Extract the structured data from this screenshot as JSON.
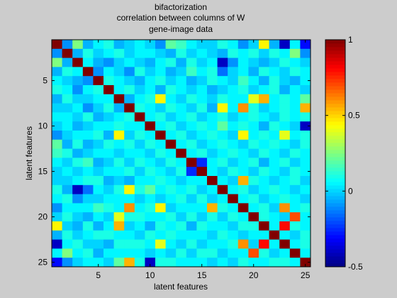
{
  "chart_data": {
    "type": "heatmap",
    "title": [
      "bifactorization",
      "correlation between columns of W",
      "gene-image data"
    ],
    "xlabel": "latent features",
    "ylabel": "latent features",
    "x_ticks": [
      "5",
      "10",
      "15",
      "20",
      "25"
    ],
    "y_ticks": [
      "5",
      "10",
      "15",
      "20",
      "25"
    ],
    "x_tick_values": [
      5,
      10,
      15,
      20,
      25
    ],
    "y_tick_values": [
      5,
      10,
      15,
      20,
      25
    ],
    "x_range": [
      0.5,
      25.5
    ],
    "y_range": [
      0.5,
      25.5
    ],
    "y_direction": "reversed",
    "colormap": "jet",
    "color_range": [
      -0.5,
      1
    ],
    "colorbar_ticks": [
      "-0.5",
      "0",
      "0.5",
      "1"
    ],
    "colorbar_tick_values": [
      -0.5,
      0,
      0.5,
      1
    ],
    "matrix": [
      [
        1.0,
        -0.1,
        0.25,
        -0.05,
        0.05,
        0.1,
        -0.05,
        0.0,
        0.05,
        0.0,
        -0.1,
        0.2,
        0.15,
        0.05,
        0.0,
        0.0,
        0.1,
        0.05,
        -0.1,
        0.0,
        0.45,
        -0.05,
        -0.4,
        0.05,
        -0.3
      ],
      [
        -0.1,
        1.0,
        -0.05,
        0.1,
        0.0,
        0.05,
        0.1,
        0.0,
        0.05,
        0.05,
        0.0,
        -0.05,
        0.1,
        0.0,
        0.05,
        0.0,
        -0.05,
        0.1,
        0.05,
        0.1,
        0.0,
        0.1,
        0.05,
        0.25,
        -0.1
      ],
      [
        0.25,
        -0.05,
        1.0,
        0.05,
        -0.05,
        -0.1,
        0.0,
        0.05,
        0.0,
        -0.05,
        0.05,
        0.1,
        -0.05,
        0.1,
        0.0,
        0.05,
        -0.4,
        -0.1,
        0.05,
        0.0,
        -0.05,
        0.0,
        0.1,
        0.05,
        0.0
      ],
      [
        -0.05,
        0.1,
        0.05,
        1.0,
        -0.1,
        0.05,
        0.0,
        -0.1,
        0.1,
        0.0,
        0.05,
        -0.05,
        0.0,
        0.15,
        0.05,
        0.1,
        -0.15,
        0.0,
        0.05,
        -0.05,
        0.1,
        0.05,
        0.0,
        0.1,
        0.05
      ],
      [
        0.05,
        0.0,
        -0.05,
        -0.1,
        1.0,
        0.1,
        0.05,
        0.0,
        -0.05,
        0.05,
        0.1,
        0.0,
        0.05,
        -0.05,
        0.0,
        0.1,
        0.05,
        0.0,
        0.15,
        0.05,
        -0.05,
        0.1,
        0.0,
        -0.05,
        0.05
      ],
      [
        0.1,
        0.05,
        -0.1,
        0.05,
        0.1,
        1.0,
        0.05,
        0.1,
        0.0,
        0.05,
        -0.05,
        0.1,
        0.05,
        0.0,
        0.05,
        -0.05,
        0.0,
        0.05,
        0.1,
        0.0,
        0.05,
        0.1,
        -0.05,
        0.05,
        0.0
      ],
      [
        -0.05,
        0.1,
        0.0,
        0.0,
        0.05,
        0.05,
        1.0,
        -0.05,
        0.05,
        0.1,
        0.45,
        0.05,
        0.0,
        0.1,
        0.05,
        0.0,
        0.1,
        0.05,
        0.05,
        0.4,
        0.55,
        0.05,
        0.1,
        0.05,
        0.2
      ],
      [
        0.0,
        0.0,
        0.05,
        -0.1,
        0.0,
        0.1,
        -0.05,
        1.0,
        0.1,
        0.05,
        0.0,
        0.1,
        0.05,
        0.0,
        0.1,
        -0.05,
        0.45,
        0.05,
        0.6,
        0.1,
        0.0,
        0.05,
        0.1,
        0.05,
        0.55
      ],
      [
        0.05,
        0.05,
        0.0,
        0.1,
        -0.05,
        0.0,
        0.05,
        0.1,
        1.0,
        0.05,
        0.1,
        0.0,
        0.05,
        0.1,
        0.0,
        0.05,
        0.1,
        0.0,
        0.05,
        0.1,
        0.05,
        0.0,
        0.1,
        0.05,
        0.1
      ],
      [
        0.0,
        0.05,
        -0.05,
        0.0,
        0.05,
        0.05,
        0.1,
        0.05,
        0.05,
        1.0,
        0.05,
        0.1,
        0.0,
        0.05,
        0.1,
        0.05,
        0.2,
        0.05,
        0.1,
        0.05,
        -0.05,
        0.1,
        0.05,
        0.0,
        -0.4
      ],
      [
        -0.1,
        0.0,
        0.05,
        0.05,
        0.1,
        -0.05,
        0.45,
        0.0,
        0.1,
        0.05,
        1.0,
        0.05,
        0.1,
        0.0,
        0.05,
        0.1,
        0.05,
        0.0,
        0.45,
        0.05,
        0.1,
        0.05,
        0.4,
        0.05,
        0.1
      ],
      [
        0.2,
        -0.05,
        0.1,
        -0.05,
        0.0,
        0.1,
        0.05,
        0.1,
        0.0,
        0.1,
        0.05,
        1.0,
        0.05,
        0.1,
        0.0,
        0.05,
        0.1,
        0.05,
        0.0,
        0.1,
        0.05,
        0.1,
        0.05,
        0.0,
        0.1
      ],
      [
        0.15,
        0.1,
        -0.05,
        0.0,
        0.05,
        0.05,
        0.0,
        0.05,
        0.05,
        0.0,
        0.1,
        0.05,
        1.0,
        0.05,
        0.1,
        0.0,
        0.05,
        0.1,
        0.05,
        0.0,
        0.1,
        0.05,
        0.0,
        0.1,
        0.05
      ],
      [
        0.05,
        0.0,
        0.1,
        0.15,
        -0.05,
        0.0,
        0.1,
        0.0,
        0.1,
        0.05,
        0.0,
        0.1,
        0.05,
        1.0,
        -0.25,
        0.05,
        0.1,
        0.0,
        0.05,
        0.1,
        -0.05,
        0.05,
        0.1,
        0.0,
        0.05
      ],
      [
        0.0,
        0.05,
        0.0,
        0.05,
        0.0,
        0.05,
        0.05,
        0.1,
        0.0,
        0.1,
        0.05,
        0.0,
        0.1,
        -0.25,
        1.0,
        0.05,
        0.0,
        0.1,
        0.05,
        0.0,
        0.1,
        0.05,
        0.0,
        0.1,
        0.05
      ],
      [
        0.0,
        0.0,
        0.05,
        0.1,
        0.1,
        -0.05,
        0.0,
        -0.05,
        0.05,
        0.05,
        0.1,
        0.05,
        0.0,
        0.05,
        0.05,
        1.0,
        0.05,
        0.0,
        0.55,
        0.1,
        0.05,
        0.0,
        0.05,
        0.1,
        0.0
      ],
      [
        0.1,
        -0.05,
        -0.4,
        -0.15,
        0.05,
        0.0,
        0.1,
        0.45,
        0.1,
        0.2,
        0.05,
        0.1,
        0.05,
        0.1,
        0.0,
        0.05,
        1.0,
        0.05,
        0.1,
        0.0,
        0.05,
        0.1,
        0.05,
        0.0,
        0.05
      ],
      [
        0.05,
        0.1,
        -0.1,
        0.0,
        0.0,
        0.05,
        0.05,
        0.05,
        0.0,
        0.05,
        0.0,
        0.05,
        0.1,
        0.0,
        0.1,
        0.0,
        0.05,
        1.0,
        0.05,
        0.1,
        0.0,
        0.05,
        0.1,
        0.05,
        0.0
      ],
      [
        -0.1,
        0.05,
        0.05,
        0.05,
        0.15,
        0.1,
        0.05,
        0.6,
        0.05,
        0.1,
        0.45,
        0.0,
        0.05,
        0.05,
        0.05,
        0.55,
        0.1,
        0.05,
        1.0,
        0.05,
        0.1,
        0.0,
        0.6,
        0.05,
        0.1
      ],
      [
        0.0,
        0.1,
        0.0,
        -0.05,
        0.05,
        0.0,
        0.4,
        0.1,
        0.1,
        0.05,
        0.05,
        0.1,
        0.0,
        0.1,
        0.0,
        0.1,
        0.0,
        0.1,
        0.05,
        1.0,
        0.1,
        0.05,
        0.0,
        0.7,
        0.05
      ],
      [
        0.45,
        0.0,
        -0.05,
        0.1,
        -0.05,
        0.05,
        0.55,
        0.0,
        0.05,
        -0.05,
        0.1,
        0.05,
        0.1,
        -0.05,
        0.1,
        0.05,
        0.05,
        0.0,
        0.1,
        0.1,
        1.0,
        0.05,
        0.8,
        0.1,
        0.05
      ],
      [
        -0.05,
        0.1,
        0.0,
        0.05,
        0.1,
        0.1,
        0.05,
        0.05,
        0.0,
        0.1,
        0.05,
        0.1,
        0.05,
        0.05,
        0.05,
        0.0,
        0.1,
        0.05,
        0.0,
        0.05,
        0.05,
        1.0,
        0.05,
        0.0,
        0.1
      ],
      [
        -0.4,
        0.05,
        0.1,
        0.0,
        0.0,
        -0.05,
        0.1,
        0.1,
        0.1,
        0.05,
        0.4,
        0.05,
        0.0,
        0.1,
        0.0,
        0.05,
        0.05,
        0.1,
        0.6,
        0.0,
        0.8,
        0.05,
        1.0,
        0.05,
        0.1
      ],
      [
        0.05,
        0.25,
        0.05,
        0.1,
        -0.05,
        0.05,
        0.05,
        0.05,
        0.05,
        0.0,
        0.05,
        0.0,
        0.1,
        0.0,
        0.1,
        0.1,
        0.0,
        0.05,
        0.05,
        0.7,
        0.1,
        0.0,
        0.05,
        1.0,
        0.05
      ],
      [
        -0.3,
        -0.1,
        0.0,
        0.05,
        0.05,
        0.0,
        0.2,
        0.55,
        0.1,
        -0.4,
        0.1,
        0.1,
        0.05,
        0.05,
        0.05,
        0.0,
        0.05,
        0.0,
        0.1,
        0.05,
        0.05,
        0.1,
        0.1,
        0.05,
        1.0
      ]
    ]
  }
}
